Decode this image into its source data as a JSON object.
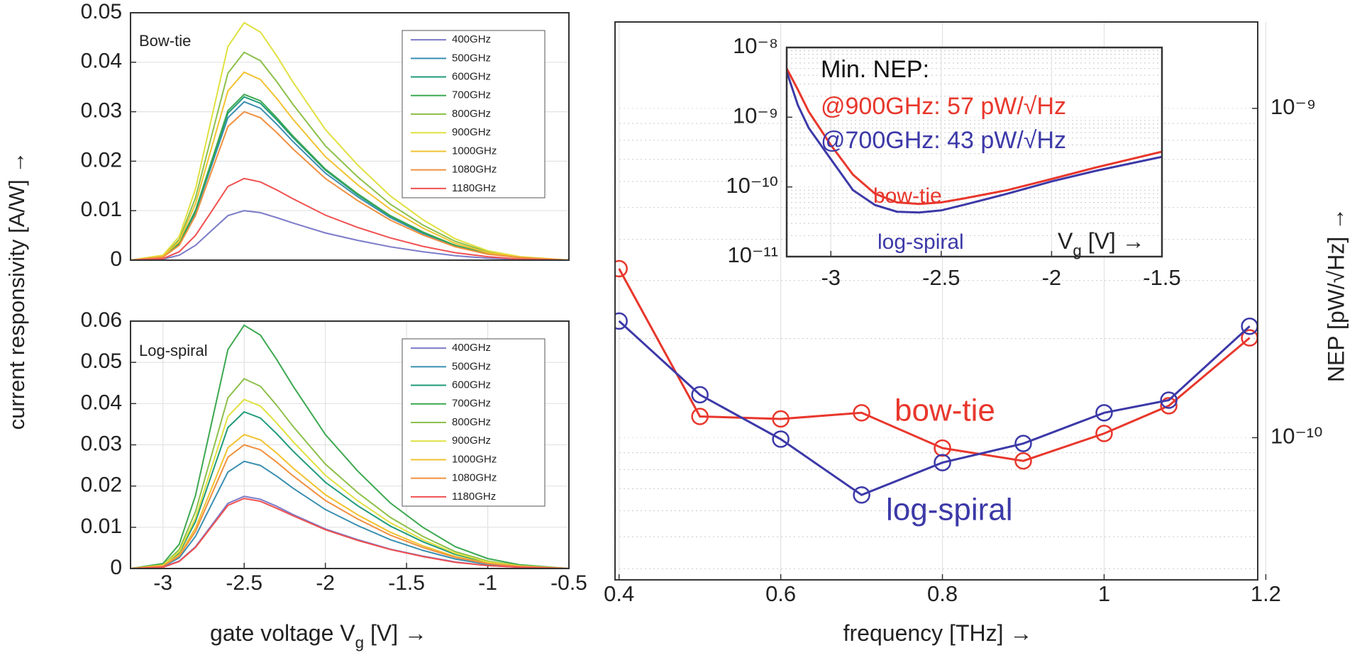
{
  "chart_data": [
    {
      "type": "line",
      "annotations": [
        {
          "text": "Bow-tie",
          "color": "#222"
        }
      ],
      "ylabel": "current responsivity [A/W] →",
      "x": [
        -3.2,
        -3.0,
        -2.9,
        -2.8,
        -2.7,
        -2.6,
        -2.5,
        -2.4,
        -2.3,
        -2.2,
        -2.0,
        -1.8,
        -1.6,
        -1.4,
        -1.2,
        -1.0,
        -0.8,
        -0.5
      ],
      "xlim": [
        -3.2,
        -0.5
      ],
      "ylim": [
        0,
        0.05
      ],
      "yticks": [
        0,
        0.01,
        0.02,
        0.03,
        0.04,
        0.05
      ],
      "grid": true,
      "legend": "upper right",
      "series": [
        {
          "name": "400GHz",
          "color": "#7b7bc8",
          "values": [
            0,
            0.0002,
            0.001,
            0.003,
            0.006,
            0.009,
            0.01,
            0.0096,
            0.0086,
            0.0075,
            0.0055,
            0.004,
            0.0027,
            0.0017,
            0.0009,
            0.0004,
            0.0002,
            0
          ]
        },
        {
          "name": "500GHz",
          "color": "#3a8fb0",
          "values": [
            0,
            0.0006,
            0.0032,
            0.0096,
            0.0192,
            0.0288,
            0.032,
            0.0307,
            0.0275,
            0.024,
            0.0176,
            0.0128,
            0.0086,
            0.0054,
            0.0029,
            0.0013,
            0.0005,
            0
          ]
        },
        {
          "name": "600GHz",
          "color": "#1f9a7a",
          "values": [
            0,
            0.0007,
            0.0033,
            0.0099,
            0.0198,
            0.0297,
            0.033,
            0.0317,
            0.0284,
            0.0248,
            0.0182,
            0.0132,
            0.0089,
            0.0056,
            0.003,
            0.0013,
            0.0005,
            0
          ]
        },
        {
          "name": "700GHz",
          "color": "#3ca850",
          "values": [
            0,
            0.0007,
            0.0034,
            0.0101,
            0.0201,
            0.0302,
            0.0335,
            0.0322,
            0.0288,
            0.0251,
            0.0184,
            0.0134,
            0.009,
            0.0057,
            0.003,
            0.0013,
            0.0005,
            0
          ]
        },
        {
          "name": "800GHz",
          "color": "#8cc04a",
          "values": [
            0,
            0.0008,
            0.0042,
            0.0126,
            0.0252,
            0.0378,
            0.042,
            0.0403,
            0.0361,
            0.0315,
            0.0231,
            0.0168,
            0.0113,
            0.0071,
            0.0038,
            0.0017,
            0.0006,
            0
          ]
        },
        {
          "name": "900GHz",
          "color": "#e0e040",
          "values": [
            0,
            0.001,
            0.0048,
            0.0144,
            0.0288,
            0.0432,
            0.048,
            0.0461,
            0.0413,
            0.036,
            0.0264,
            0.0192,
            0.013,
            0.0082,
            0.0043,
            0.0019,
            0.0007,
            0
          ]
        },
        {
          "name": "1000GHz",
          "color": "#f2c230",
          "values": [
            0,
            0.0008,
            0.0038,
            0.0114,
            0.0228,
            0.0342,
            0.038,
            0.0365,
            0.0327,
            0.0285,
            0.0209,
            0.0152,
            0.0103,
            0.0065,
            0.0034,
            0.0015,
            0.0006,
            0
          ]
        },
        {
          "name": "1080GHz",
          "color": "#f09040",
          "values": [
            0,
            0.0006,
            0.003,
            0.009,
            0.018,
            0.027,
            0.03,
            0.0288,
            0.0258,
            0.0225,
            0.0165,
            0.012,
            0.0081,
            0.0051,
            0.0027,
            0.0012,
            0.0005,
            0
          ]
        },
        {
          "name": "1180GHz",
          "color": "#f05050",
          "values": [
            0,
            0.0003,
            0.0017,
            0.005,
            0.0099,
            0.0149,
            0.0165,
            0.0158,
            0.0142,
            0.0124,
            0.0091,
            0.0066,
            0.0045,
            0.0028,
            0.0015,
            0.0007,
            0.0002,
            0
          ]
        }
      ]
    },
    {
      "type": "line",
      "annotations": [
        {
          "text": "Log-spiral",
          "color": "#222"
        }
      ],
      "xlabel": [
        "gate voltage V",
        "g",
        " [V] →"
      ],
      "x": [
        -3.2,
        -3.0,
        -2.9,
        -2.8,
        -2.7,
        -2.6,
        -2.5,
        -2.4,
        -2.3,
        -2.2,
        -2.0,
        -1.8,
        -1.6,
        -1.4,
        -1.2,
        -1.0,
        -0.8,
        -0.5
      ],
      "xlim": [
        -3.2,
        -0.5
      ],
      "xticks": [
        -3,
        -2.5,
        -2,
        -1.5,
        -1,
        -0.5
      ],
      "ylim": [
        0,
        0.06
      ],
      "yticks": [
        0,
        0.01,
        0.02,
        0.03,
        0.04,
        0.05,
        0.06
      ],
      "grid": true,
      "legend": "upper right",
      "series": [
        {
          "name": "400GHz",
          "color": "#7b7bc8",
          "values": [
            0,
            0.0004,
            0.0018,
            0.0053,
            0.0105,
            0.0158,
            0.0175,
            0.0168,
            0.0151,
            0.0131,
            0.0096,
            0.007,
            0.0047,
            0.003,
            0.0016,
            0.0007,
            0.0003,
            0
          ]
        },
        {
          "name": "500GHz",
          "color": "#3a8fb0",
          "values": [
            0,
            0.0005,
            0.0026,
            0.0078,
            0.0156,
            0.0234,
            0.026,
            0.025,
            0.0224,
            0.0195,
            0.0143,
            0.0104,
            0.007,
            0.0044,
            0.0023,
            0.001,
            0.0004,
            0
          ]
        },
        {
          "name": "600GHz",
          "color": "#1f9a7a",
          "values": [
            0,
            0.0008,
            0.0038,
            0.0114,
            0.0228,
            0.0342,
            0.038,
            0.0365,
            0.0327,
            0.0285,
            0.0209,
            0.0152,
            0.0103,
            0.0065,
            0.0034,
            0.0015,
            0.0006,
            0
          ]
        },
        {
          "name": "700GHz",
          "color": "#3ca850",
          "values": [
            0,
            0.0012,
            0.0059,
            0.0177,
            0.0354,
            0.0531,
            0.059,
            0.0566,
            0.0507,
            0.0443,
            0.0325,
            0.0236,
            0.0159,
            0.01,
            0.0053,
            0.0024,
            0.0009,
            0
          ]
        },
        {
          "name": "800GHz",
          "color": "#8cc04a",
          "values": [
            0,
            0.0009,
            0.0046,
            0.0138,
            0.0276,
            0.0414,
            0.046,
            0.0442,
            0.0396,
            0.0345,
            0.0253,
            0.0184,
            0.0124,
            0.0078,
            0.0041,
            0.0018,
            0.0007,
            0
          ]
        },
        {
          "name": "900GHz",
          "color": "#e0e040",
          "values": [
            0,
            0.0008,
            0.0041,
            0.0123,
            0.0246,
            0.0369,
            0.041,
            0.0394,
            0.0353,
            0.0308,
            0.0226,
            0.0164,
            0.0111,
            0.007,
            0.0037,
            0.0016,
            0.0006,
            0
          ]
        },
        {
          "name": "1000GHz",
          "color": "#f2c230",
          "values": [
            0,
            0.0007,
            0.0033,
            0.0098,
            0.0195,
            0.0293,
            0.0325,
            0.0312,
            0.028,
            0.0244,
            0.0179,
            0.013,
            0.0088,
            0.0055,
            0.0029,
            0.0013,
            0.0005,
            0
          ]
        },
        {
          "name": "1080GHz",
          "color": "#f09040",
          "values": [
            0,
            0.0006,
            0.003,
            0.009,
            0.018,
            0.027,
            0.03,
            0.0288,
            0.0258,
            0.0225,
            0.0165,
            0.012,
            0.0081,
            0.0051,
            0.0027,
            0.0012,
            0.0005,
            0
          ]
        },
        {
          "name": "1180GHz",
          "color": "#f05050",
          "values": [
            0,
            0.0003,
            0.0017,
            0.0051,
            0.0102,
            0.0153,
            0.017,
            0.0163,
            0.0146,
            0.0128,
            0.0094,
            0.0068,
            0.0046,
            0.0029,
            0.0015,
            0.0007,
            0.0003,
            0
          ]
        }
      ]
    },
    {
      "type": "line",
      "markers": true,
      "log_y": true,
      "y_axis_side": "right",
      "grid": true,
      "xlabel": [
        "frequency [THz] →"
      ],
      "ylabel": "NEP [pW/√Hz] →",
      "annotations": [
        {
          "text": "bow-tie",
          "color": "#e8372c"
        },
        {
          "text": "log-spiral",
          "color": "#3c39a8"
        }
      ],
      "x": [
        0.4,
        0.5,
        0.6,
        0.7,
        0.8,
        0.9,
        1.0,
        1.08,
        1.18
      ],
      "xlim": [
        0.395,
        1.19
      ],
      "xticks": [
        0.4,
        0.6,
        0.8,
        1,
        1.2
      ],
      "ylim": [
        3.7e-11,
        1.83e-09
      ],
      "yticks": [
        {
          "value": 1e-10,
          "label": "10⁻¹⁰"
        },
        {
          "value": 1e-09,
          "label": "10⁻⁹"
        }
      ],
      "minor_yticks": [
        4e-11,
        5e-11,
        6e-11,
        7e-11,
        8e-11,
        9e-11,
        2e-10,
        3e-10,
        4e-10,
        5e-10,
        6e-10,
        7e-10,
        8e-10,
        9e-10
      ],
      "series": [
        {
          "name": "bow-tie",
          "color": "#e8372c",
          "values": [
            3.26e-10,
            1.16e-10,
            1.14e-10,
            1.19e-10,
            9.3e-11,
            8.5e-11,
            1.03e-10,
            1.25e-10,
            2.01e-10
          ]
        },
        {
          "name": "log-spiral",
          "color": "#3c39a8",
          "values": [
            2.26e-10,
            1.35e-10,
            9.9e-11,
            6.7e-11,
            8.4e-11,
            9.6e-11,
            1.19e-10,
            1.3e-10,
            2.18e-10
          ]
        }
      ]
    },
    {
      "type": "line",
      "log_y": true,
      "grid": true,
      "xlabel": [
        "V",
        "g",
        " [V] →"
      ],
      "annotations": [
        {
          "text": "Min. NEP:",
          "color": "#111"
        },
        {
          "text": "@900GHz: 57 pW/√Hz",
          "color": "#e8372c"
        },
        {
          "text": "@700GHz: 43 pW/√Hz",
          "color": "#3c39a8"
        },
        {
          "text": "bow-tie",
          "color": "#e8372c"
        },
        {
          "text": "log-spiral",
          "color": "#3c39a8"
        }
      ],
      "x": [
        -3.2,
        -3.15,
        -3.1,
        -3.0,
        -2.9,
        -2.8,
        -2.7,
        -2.6,
        -2.5,
        -2.4,
        -2.2,
        -2.0,
        -1.8,
        -1.5
      ],
      "xlim": [
        -3.2,
        -1.5
      ],
      "xticks": [
        -3,
        -2.5,
        -2,
        -1.5
      ],
      "ylim": [
        1e-11,
        1e-08
      ],
      "yticks": [
        {
          "value": 1e-11,
          "label": "10⁻¹¹"
        },
        {
          "value": 1e-10,
          "label": "10⁻¹⁰"
        },
        {
          "value": 1e-09,
          "label": "10⁻⁹"
        },
        {
          "value": 1e-08,
          "label": "10⁻⁸"
        }
      ],
      "minor_yticks": [
        2e-11,
        3e-11,
        4e-11,
        5e-11,
        6e-11,
        7e-11,
        8e-11,
        9e-11,
        2e-10,
        3e-10,
        4e-10,
        5e-10,
        6e-10,
        7e-10,
        8e-10,
        9e-10,
        2e-09,
        3e-09,
        4e-09,
        5e-09,
        6e-09,
        7e-09,
        8e-09,
        9e-09
      ],
      "series": [
        {
          "name": "bow-tie",
          "color": "#e8372c",
          "values": [
            5e-09,
            2.5e-09,
            1.2e-09,
            4e-10,
            1.5e-10,
            8e-11,
            6e-11,
            5.7e-11,
            6e-11,
            6.8e-11,
            9e-11,
            1.3e-10,
            1.9e-10,
            3.2e-10
          ]
        },
        {
          "name": "log-spiral",
          "color": "#3c39a8",
          "values": [
            4.5e-09,
            1.5e-09,
            7e-10,
            2.5e-10,
            9e-11,
            5.5e-11,
            4.4e-11,
            4.3e-11,
            4.6e-11,
            5.5e-11,
            8e-11,
            1.2e-10,
            1.7e-10,
            2.7e-10
          ]
        }
      ]
    }
  ]
}
